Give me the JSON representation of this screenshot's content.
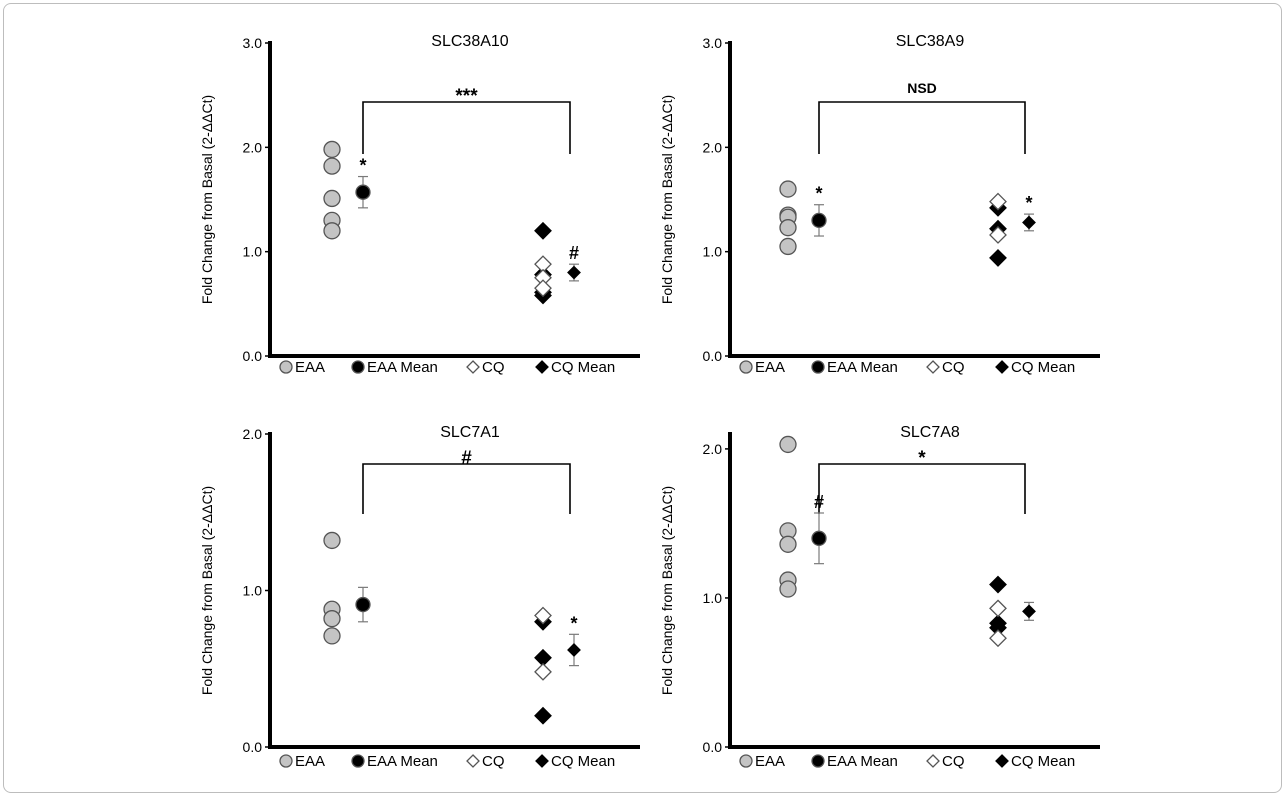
{
  "colors": {
    "eaa": "#c4c4c4",
    "eaa_mean": "#000000",
    "cq": "#ffffff",
    "cq_mean": "#000000",
    "axis": "#000000",
    "error_bar": "#7a7a7a"
  },
  "legend": {
    "items": [
      {
        "label": "EAA",
        "marker": "circle-gray"
      },
      {
        "label": "EAA Mean",
        "marker": "circle-black"
      },
      {
        "label": "CQ",
        "marker": "diamond-white"
      },
      {
        "label": "CQ Mean",
        "marker": "diamond-black"
      }
    ]
  },
  "chart_data": [
    {
      "type": "scatter",
      "title": "SLC38A10",
      "ylabel": "Fold Change from Basal (2-ΔΔCt)",
      "ylim": [
        0,
        3
      ],
      "yticks": [
        0,
        1,
        2,
        3
      ],
      "ytick_labels": [
        "0.0",
        "1.0",
        "2.0",
        "3.0"
      ],
      "eaa": [
        1.98,
        1.82,
        1.51,
        1.3,
        1.2
      ],
      "eaa_mean": {
        "value": 1.57,
        "err": 0.15,
        "annotation": "*"
      },
      "cq": [
        0.88,
        0.75,
        0.65
      ],
      "cq_black": [
        1.2,
        0.78,
        0.61,
        0.58
      ],
      "cq_mean": {
        "value": 0.8,
        "err": 0.08,
        "annotation": "#"
      },
      "bracket": "***"
    },
    {
      "type": "scatter",
      "title": "SLC38A9",
      "ylabel": "Fold Change from Basal (2-ΔΔCt)",
      "ylim": [
        0,
        3
      ],
      "yticks": [
        0,
        1,
        2,
        3
      ],
      "ytick_labels": [
        "0.0",
        "1.0",
        "2.0",
        "3.0"
      ],
      "eaa": [
        1.6,
        1.35,
        1.33,
        1.23,
        1.05
      ],
      "eaa_mean": {
        "value": 1.3,
        "err": 0.15,
        "annotation": "*"
      },
      "cq": [
        1.48,
        1.16
      ],
      "cq_black": [
        1.42,
        1.22,
        0.94
      ],
      "cq_mean": {
        "value": 1.28,
        "err": 0.08,
        "annotation": "*"
      },
      "bracket": "NSD"
    },
    {
      "type": "scatter",
      "title": "SLC7A1",
      "ylabel": "Fold Change from Basal (2-ΔΔCt)",
      "ylim": [
        0,
        2
      ],
      "yticks": [
        0,
        1,
        2
      ],
      "ytick_labels": [
        "0.0",
        "1.0",
        "2.0"
      ],
      "eaa": [
        1.32,
        0.88,
        0.82,
        0.71
      ],
      "eaa_mean": {
        "value": 0.91,
        "err": 0.11,
        "annotation": ""
      },
      "cq": [
        0.84,
        0.48
      ],
      "cq_black": [
        0.8,
        0.57,
        0.2
      ],
      "cq_mean": {
        "value": 0.62,
        "err": 0.1,
        "annotation": "*"
      },
      "bracket": "#"
    },
    {
      "type": "scatter",
      "title": "SLC7A8",
      "ylabel": "Fold Change from Basal (2-ΔΔCt)",
      "ylim": [
        0,
        2.1
      ],
      "yticks": [
        0,
        1,
        2
      ],
      "ytick_labels": [
        "0.0",
        "1.0",
        "2.0"
      ],
      "eaa": [
        2.03,
        1.45,
        1.36,
        1.12,
        1.06
      ],
      "eaa_mean": {
        "value": 1.4,
        "err": 0.17,
        "annotation": "#"
      },
      "cq": [
        0.93,
        0.73
      ],
      "cq_black": [
        1.09,
        0.83,
        0.8
      ],
      "cq_mean": {
        "value": 0.91,
        "err": 0.06,
        "annotation": ""
      },
      "bracket": "*"
    }
  ]
}
